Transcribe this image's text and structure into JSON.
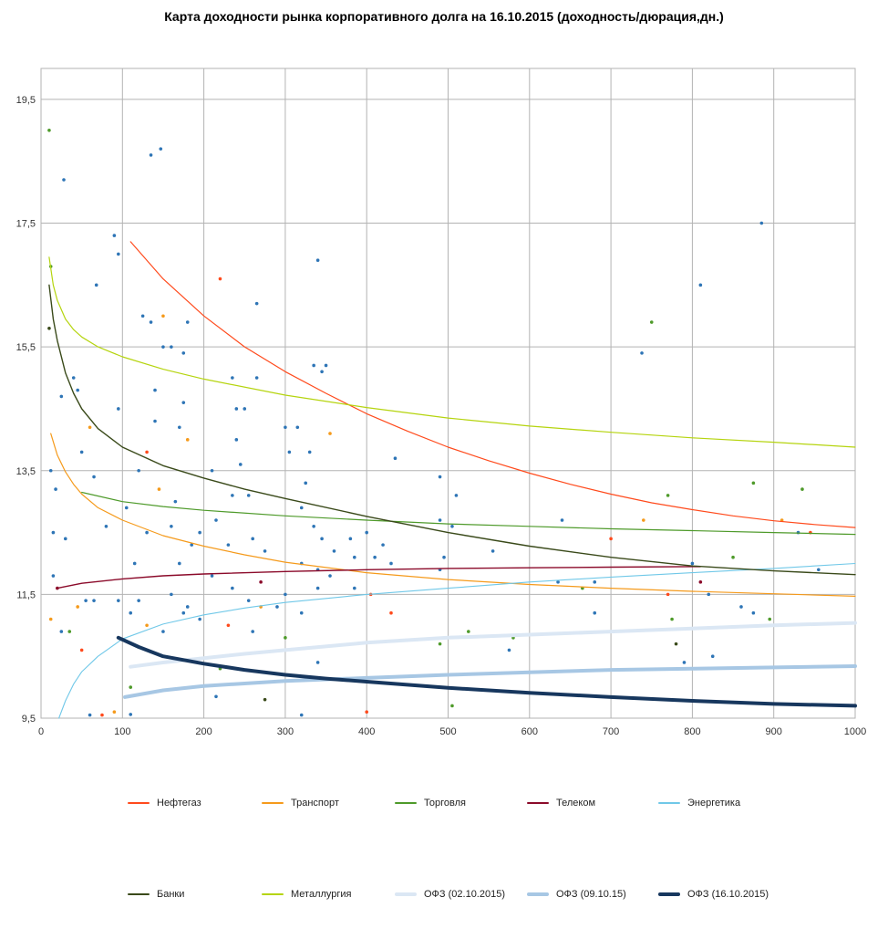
{
  "chart_data": {
    "type": "scatter",
    "title": "Карта доходности рынка корпоративного долга на 16.10.2015 (доходность/дюрация,дн.)",
    "xlabel": "",
    "ylabel": "",
    "xlim": [
      0,
      1000
    ],
    "ylim": [
      9.5,
      20
    ],
    "x_ticks": [
      "0",
      "100",
      "200",
      "300",
      "400",
      "500",
      "600",
      "700",
      "800",
      "900",
      "1000"
    ],
    "y_ticks": [
      "9,5",
      "11,5",
      "13,5",
      "15,5",
      "17,5",
      "19,5"
    ],
    "grid": true,
    "legend_position": "bottom",
    "series": [
      {
        "name": "Нефтегаз",
        "color": "#ff4a1c",
        "width": 1.2,
        "x": [
          110,
          150,
          200,
          250,
          300,
          350,
          400,
          450,
          500,
          550,
          600,
          650,
          700,
          750,
          800,
          850,
          900,
          950,
          1000
        ],
        "y": [
          17.2,
          16.6,
          16.0,
          15.5,
          15.1,
          14.75,
          14.42,
          14.14,
          13.88,
          13.66,
          13.46,
          13.28,
          13.12,
          12.98,
          12.87,
          12.77,
          12.69,
          12.63,
          12.58
        ]
      },
      {
        "name": "Транспорт",
        "color": "#f59a1b",
        "width": 1.2,
        "x": [
          12,
          20,
          30,
          40,
          50,
          70,
          100,
          150,
          200,
          250,
          300,
          400,
          500,
          600,
          700,
          800,
          900,
          1000
        ],
        "y": [
          14.1,
          13.75,
          13.48,
          13.28,
          13.12,
          12.9,
          12.7,
          12.45,
          12.28,
          12.14,
          12.02,
          11.85,
          11.74,
          11.66,
          11.6,
          11.55,
          11.51,
          11.47
        ]
      },
      {
        "name": "Торговля",
        "color": "#4e9a2a",
        "width": 1.2,
        "x": [
          50,
          100,
          150,
          200,
          300,
          400,
          500,
          600,
          700,
          800,
          900,
          1000
        ],
        "y": [
          13.15,
          13.0,
          12.92,
          12.86,
          12.77,
          12.7,
          12.64,
          12.6,
          12.56,
          12.53,
          12.5,
          12.47
        ]
      },
      {
        "name": "Телеком",
        "color": "#8b0a2a",
        "width": 1.4,
        "x": [
          20,
          50,
          100,
          150,
          200,
          300,
          400,
          500,
          600,
          700,
          800,
          810
        ],
        "y": [
          11.6,
          11.68,
          11.75,
          11.8,
          11.83,
          11.87,
          11.9,
          11.92,
          11.93,
          11.94,
          11.95,
          11.95
        ]
      },
      {
        "name": "Энергетика",
        "color": "#70c8e8",
        "width": 1.1,
        "x": [
          22,
          30,
          40,
          50,
          70,
          100,
          150,
          200,
          250,
          300,
          400,
          500,
          600,
          700,
          800,
          900,
          1000
        ],
        "y": [
          9.5,
          9.78,
          10.05,
          10.25,
          10.5,
          10.78,
          11.02,
          11.17,
          11.28,
          11.37,
          11.5,
          11.6,
          11.7,
          11.78,
          11.85,
          11.92,
          12.0
        ]
      },
      {
        "name": "Банки",
        "color": "#3a4a1a",
        "width": 1.4,
        "x": [
          10,
          15,
          20,
          30,
          40,
          50,
          70,
          100,
          150,
          200,
          250,
          300,
          400,
          500,
          600,
          700,
          800,
          900,
          1000
        ],
        "y": [
          16.5,
          15.95,
          15.6,
          15.08,
          14.75,
          14.5,
          14.18,
          13.88,
          13.58,
          13.38,
          13.2,
          13.05,
          12.76,
          12.5,
          12.28,
          12.1,
          11.96,
          11.88,
          11.82
        ]
      },
      {
        "name": "Металлургия",
        "color": "#b5d40e",
        "width": 1.2,
        "x": [
          10,
          15,
          20,
          30,
          40,
          50,
          70,
          100,
          150,
          200,
          300,
          400,
          500,
          600,
          700,
          800,
          900,
          1000
        ],
        "y": [
          16.95,
          16.5,
          16.25,
          15.95,
          15.78,
          15.66,
          15.5,
          15.34,
          15.14,
          14.98,
          14.72,
          14.52,
          14.35,
          14.22,
          14.12,
          14.03,
          13.96,
          13.88
        ]
      },
      {
        "name": "ОФЗ (02.10.2015)",
        "color": "#dbe7f4",
        "width": 4,
        "x": [
          110,
          150,
          200,
          250,
          300,
          400,
          500,
          600,
          700,
          800,
          900,
          1000
        ],
        "y": [
          10.33,
          10.4,
          10.47,
          10.54,
          10.6,
          10.72,
          10.8,
          10.85,
          10.9,
          10.95,
          11.0,
          11.04
        ]
      },
      {
        "name": "ОФЗ (09.10.15)",
        "color": "#a7c7e4",
        "width": 4,
        "x": [
          103,
          150,
          200,
          250,
          300,
          400,
          500,
          600,
          700,
          800,
          900,
          1000
        ],
        "y": [
          9.84,
          9.95,
          10.02,
          10.06,
          10.1,
          10.15,
          10.2,
          10.24,
          10.28,
          10.3,
          10.32,
          10.34
        ]
      },
      {
        "name": "ОФЗ (16.10.2015)",
        "color": "#17375e",
        "width": 4,
        "x": [
          95,
          120,
          150,
          200,
          250,
          300,
          350,
          400,
          500,
          600,
          700,
          800,
          900,
          1000
        ],
        "y": [
          10.8,
          10.65,
          10.5,
          10.38,
          10.28,
          10.2,
          10.14,
          10.09,
          9.99,
          9.91,
          9.84,
          9.78,
          9.73,
          9.7
        ]
      }
    ],
    "scatter_points": [
      {
        "x": 10,
        "y": 19.0,
        "c": "#4e9a2a"
      },
      {
        "x": 12,
        "y": 16.8,
        "c": "#4e9a2a"
      },
      {
        "x": 10,
        "y": 15.8,
        "c": "#3a4a1a"
      },
      {
        "x": 28,
        "y": 18.2,
        "c": "#2e75b6"
      },
      {
        "x": 12,
        "y": 13.5,
        "c": "#2e75b6"
      },
      {
        "x": 15,
        "y": 12.5,
        "c": "#2e75b6"
      },
      {
        "x": 18,
        "y": 13.2,
        "c": "#2e75b6"
      },
      {
        "x": 25,
        "y": 14.7,
        "c": "#2e75b6"
      },
      {
        "x": 40,
        "y": 15.0,
        "c": "#2e75b6"
      },
      {
        "x": 45,
        "y": 14.8,
        "c": "#2e75b6"
      },
      {
        "x": 50,
        "y": 13.8,
        "c": "#2e75b6"
      },
      {
        "x": 60,
        "y": 14.2,
        "c": "#f59a1b"
      },
      {
        "x": 65,
        "y": 13.4,
        "c": "#2e75b6"
      },
      {
        "x": 68,
        "y": 16.5,
        "c": "#2e75b6"
      },
      {
        "x": 90,
        "y": 17.3,
        "c": "#2e75b6"
      },
      {
        "x": 95,
        "y": 17.0,
        "c": "#2e75b6"
      },
      {
        "x": 95,
        "y": 14.5,
        "c": "#2e75b6"
      },
      {
        "x": 12,
        "y": 11.1,
        "c": "#f59a1b"
      },
      {
        "x": 15,
        "y": 11.8,
        "c": "#2e75b6"
      },
      {
        "x": 25,
        "y": 10.9,
        "c": "#2e75b6"
      },
      {
        "x": 35,
        "y": 10.9,
        "c": "#4e9a2a"
      },
      {
        "x": 45,
        "y": 11.3,
        "c": "#f59a1b"
      },
      {
        "x": 50,
        "y": 10.6,
        "c": "#ff4a1c"
      },
      {
        "x": 55,
        "y": 11.4,
        "c": "#2e75b6"
      },
      {
        "x": 65,
        "y": 11.4,
        "c": "#2e75b6"
      },
      {
        "x": 60,
        "y": 9.55,
        "c": "#2e75b6"
      },
      {
        "x": 75,
        "y": 9.55,
        "c": "#ff4a1c"
      },
      {
        "x": 90,
        "y": 9.6,
        "c": "#f59a1b"
      },
      {
        "x": 110,
        "y": 9.56,
        "c": "#2e75b6"
      },
      {
        "x": 95,
        "y": 11.4,
        "c": "#2e75b6"
      },
      {
        "x": 110,
        "y": 11.2,
        "c": "#2e75b6"
      },
      {
        "x": 115,
        "y": 12.0,
        "c": "#2e75b6"
      },
      {
        "x": 120,
        "y": 13.5,
        "c": "#2e75b6"
      },
      {
        "x": 130,
        "y": 12.5,
        "c": "#2e75b6"
      },
      {
        "x": 135,
        "y": 18.6,
        "c": "#2e75b6"
      },
      {
        "x": 147,
        "y": 18.7,
        "c": "#2e75b6"
      },
      {
        "x": 125,
        "y": 16.0,
        "c": "#2e75b6"
      },
      {
        "x": 135,
        "y": 15.9,
        "c": "#2e75b6"
      },
      {
        "x": 150,
        "y": 16.0,
        "c": "#f59a1b"
      },
      {
        "x": 150,
        "y": 15.5,
        "c": "#2e75b6"
      },
      {
        "x": 160,
        "y": 15.5,
        "c": "#2e75b6"
      },
      {
        "x": 175,
        "y": 15.4,
        "c": "#2e75b6"
      },
      {
        "x": 180,
        "y": 15.9,
        "c": "#2e75b6"
      },
      {
        "x": 140,
        "y": 14.8,
        "c": "#2e75b6"
      },
      {
        "x": 140,
        "y": 14.3,
        "c": "#2e75b6"
      },
      {
        "x": 130,
        "y": 13.8,
        "c": "#ff4a1c"
      },
      {
        "x": 145,
        "y": 13.2,
        "c": "#f59a1b"
      },
      {
        "x": 165,
        "y": 13.0,
        "c": "#2e75b6"
      },
      {
        "x": 170,
        "y": 14.2,
        "c": "#2e75b6"
      },
      {
        "x": 175,
        "y": 14.6,
        "c": "#2e75b6"
      },
      {
        "x": 180,
        "y": 14.0,
        "c": "#f59a1b"
      },
      {
        "x": 160,
        "y": 12.6,
        "c": "#2e75b6"
      },
      {
        "x": 170,
        "y": 12.0,
        "c": "#2e75b6"
      },
      {
        "x": 185,
        "y": 12.3,
        "c": "#2e75b6"
      },
      {
        "x": 195,
        "y": 12.5,
        "c": "#2e75b6"
      },
      {
        "x": 160,
        "y": 11.5,
        "c": "#2e75b6"
      },
      {
        "x": 180,
        "y": 11.3,
        "c": "#2e75b6"
      },
      {
        "x": 195,
        "y": 11.1,
        "c": "#2e75b6"
      },
      {
        "x": 130,
        "y": 11.0,
        "c": "#f59a1b"
      },
      {
        "x": 150,
        "y": 10.9,
        "c": "#2e75b6"
      },
      {
        "x": 175,
        "y": 11.2,
        "c": "#2e75b6"
      },
      {
        "x": 110,
        "y": 10.0,
        "c": "#4e9a2a"
      },
      {
        "x": 220,
        "y": 16.6,
        "c": "#ff4a1c"
      },
      {
        "x": 235,
        "y": 15.0,
        "c": "#2e75b6"
      },
      {
        "x": 240,
        "y": 14.5,
        "c": "#2e75b6"
      },
      {
        "x": 250,
        "y": 14.5,
        "c": "#2e75b6"
      },
      {
        "x": 265,
        "y": 16.2,
        "c": "#2e75b6"
      },
      {
        "x": 265,
        "y": 15.0,
        "c": "#2e75b6"
      },
      {
        "x": 240,
        "y": 14.0,
        "c": "#2e75b6"
      },
      {
        "x": 245,
        "y": 13.6,
        "c": "#2e75b6"
      },
      {
        "x": 210,
        "y": 13.5,
        "c": "#2e75b6"
      },
      {
        "x": 235,
        "y": 13.1,
        "c": "#2e75b6"
      },
      {
        "x": 255,
        "y": 13.1,
        "c": "#2e75b6"
      },
      {
        "x": 215,
        "y": 12.7,
        "c": "#2e75b6"
      },
      {
        "x": 230,
        "y": 12.3,
        "c": "#2e75b6"
      },
      {
        "x": 260,
        "y": 12.4,
        "c": "#2e75b6"
      },
      {
        "x": 275,
        "y": 12.2,
        "c": "#2e75b6"
      },
      {
        "x": 210,
        "y": 11.8,
        "c": "#2e75b6"
      },
      {
        "x": 235,
        "y": 11.6,
        "c": "#2e75b6"
      },
      {
        "x": 255,
        "y": 11.4,
        "c": "#2e75b6"
      },
      {
        "x": 270,
        "y": 11.3,
        "c": "#f59a1b"
      },
      {
        "x": 230,
        "y": 11.0,
        "c": "#ff4a1c"
      },
      {
        "x": 220,
        "y": 10.3,
        "c": "#4e9a2a"
      },
      {
        "x": 215,
        "y": 9.85,
        "c": "#2e75b6"
      },
      {
        "x": 275,
        "y": 9.8,
        "c": "#3a4a1a"
      },
      {
        "x": 300,
        "y": 14.2,
        "c": "#2e75b6"
      },
      {
        "x": 315,
        "y": 14.2,
        "c": "#2e75b6"
      },
      {
        "x": 305,
        "y": 13.8,
        "c": "#2e75b6"
      },
      {
        "x": 325,
        "y": 13.3,
        "c": "#2e75b6"
      },
      {
        "x": 330,
        "y": 13.8,
        "c": "#2e75b6"
      },
      {
        "x": 340,
        "y": 16.9,
        "c": "#2e75b6"
      },
      {
        "x": 335,
        "y": 15.2,
        "c": "#2e75b6"
      },
      {
        "x": 345,
        "y": 15.1,
        "c": "#2e75b6"
      },
      {
        "x": 350,
        "y": 15.2,
        "c": "#2e75b6"
      },
      {
        "x": 355,
        "y": 14.1,
        "c": "#f59a1b"
      },
      {
        "x": 320,
        "y": 12.9,
        "c": "#2e75b6"
      },
      {
        "x": 335,
        "y": 12.6,
        "c": "#2e75b6"
      },
      {
        "x": 345,
        "y": 12.4,
        "c": "#2e75b6"
      },
      {
        "x": 360,
        "y": 12.2,
        "c": "#2e75b6"
      },
      {
        "x": 320,
        "y": 12.0,
        "c": "#2e75b6"
      },
      {
        "x": 340,
        "y": 11.9,
        "c": "#2e75b6"
      },
      {
        "x": 355,
        "y": 11.8,
        "c": "#2e75b6"
      },
      {
        "x": 300,
        "y": 11.5,
        "c": "#2e75b6"
      },
      {
        "x": 320,
        "y": 11.2,
        "c": "#2e75b6"
      },
      {
        "x": 340,
        "y": 11.6,
        "c": "#2e75b6"
      },
      {
        "x": 300,
        "y": 10.8,
        "c": "#4e9a2a"
      },
      {
        "x": 340,
        "y": 10.4,
        "c": "#2e75b6"
      },
      {
        "x": 320,
        "y": 9.55,
        "c": "#2e75b6"
      },
      {
        "x": 380,
        "y": 12.4,
        "c": "#2e75b6"
      },
      {
        "x": 385,
        "y": 12.1,
        "c": "#2e75b6"
      },
      {
        "x": 400,
        "y": 12.5,
        "c": "#2e75b6"
      },
      {
        "x": 410,
        "y": 12.1,
        "c": "#2e75b6"
      },
      {
        "x": 420,
        "y": 12.3,
        "c": "#2e75b6"
      },
      {
        "x": 430,
        "y": 12.0,
        "c": "#2e75b6"
      },
      {
        "x": 385,
        "y": 11.6,
        "c": "#2e75b6"
      },
      {
        "x": 405,
        "y": 11.5,
        "c": "#ff4a1c"
      },
      {
        "x": 435,
        "y": 13.7,
        "c": "#2e75b6"
      },
      {
        "x": 430,
        "y": 11.2,
        "c": "#ff4a1c"
      },
      {
        "x": 400,
        "y": 9.6,
        "c": "#ff4a1c"
      },
      {
        "x": 490,
        "y": 13.4,
        "c": "#2e75b6"
      },
      {
        "x": 510,
        "y": 13.1,
        "c": "#2e75b6"
      },
      {
        "x": 505,
        "y": 12.6,
        "c": "#2e75b6"
      },
      {
        "x": 490,
        "y": 12.7,
        "c": "#2e75b6"
      },
      {
        "x": 495,
        "y": 12.1,
        "c": "#2e75b6"
      },
      {
        "x": 490,
        "y": 11.9,
        "c": "#2e75b6"
      },
      {
        "x": 490,
        "y": 10.7,
        "c": "#4e9a2a"
      },
      {
        "x": 505,
        "y": 9.7,
        "c": "#4e9a2a"
      },
      {
        "x": 525,
        "y": 10.9,
        "c": "#4e9a2a"
      },
      {
        "x": 555,
        "y": 12.2,
        "c": "#2e75b6"
      },
      {
        "x": 575,
        "y": 10.6,
        "c": "#2e75b6"
      },
      {
        "x": 580,
        "y": 10.8,
        "c": "#4e9a2a"
      },
      {
        "x": 640,
        "y": 12.7,
        "c": "#2e75b6"
      },
      {
        "x": 635,
        "y": 11.7,
        "c": "#2e75b6"
      },
      {
        "x": 665,
        "y": 11.6,
        "c": "#4e9a2a"
      },
      {
        "x": 680,
        "y": 11.7,
        "c": "#2e75b6"
      },
      {
        "x": 680,
        "y": 11.2,
        "c": "#2e75b6"
      },
      {
        "x": 700,
        "y": 12.4,
        "c": "#ff4a1c"
      },
      {
        "x": 740,
        "y": 12.7,
        "c": "#f59a1b"
      },
      {
        "x": 738,
        "y": 15.4,
        "c": "#2e75b6"
      },
      {
        "x": 750,
        "y": 15.9,
        "c": "#4e9a2a"
      },
      {
        "x": 770,
        "y": 13.1,
        "c": "#4e9a2a"
      },
      {
        "x": 770,
        "y": 11.5,
        "c": "#ff4a1c"
      },
      {
        "x": 775,
        "y": 11.1,
        "c": "#4e9a2a"
      },
      {
        "x": 780,
        "y": 10.7,
        "c": "#3a4a1a"
      },
      {
        "x": 790,
        "y": 10.4,
        "c": "#2e75b6"
      },
      {
        "x": 800,
        "y": 12.0,
        "c": "#2e75b6"
      },
      {
        "x": 810,
        "y": 16.5,
        "c": "#2e75b6"
      },
      {
        "x": 810,
        "y": 11.7,
        "c": "#8b0a2a"
      },
      {
        "x": 820,
        "y": 11.5,
        "c": "#2e75b6"
      },
      {
        "x": 825,
        "y": 10.5,
        "c": "#2e75b6"
      },
      {
        "x": 850,
        "y": 12.1,
        "c": "#4e9a2a"
      },
      {
        "x": 860,
        "y": 11.3,
        "c": "#2e75b6"
      },
      {
        "x": 875,
        "y": 13.3,
        "c": "#4e9a2a"
      },
      {
        "x": 885,
        "y": 17.5,
        "c": "#2e75b6"
      },
      {
        "x": 895,
        "y": 11.1,
        "c": "#4e9a2a"
      },
      {
        "x": 910,
        "y": 12.7,
        "c": "#f59a1b"
      },
      {
        "x": 930,
        "y": 12.5,
        "c": "#2e75b6"
      },
      {
        "x": 935,
        "y": 13.2,
        "c": "#4e9a2a"
      },
      {
        "x": 945,
        "y": 12.5,
        "c": "#ff4a1c"
      },
      {
        "x": 955,
        "y": 11.9,
        "c": "#2e75b6"
      },
      {
        "x": 875,
        "y": 11.2,
        "c": "#2e75b6"
      },
      {
        "x": 260,
        "y": 10.9,
        "c": "#2e75b6"
      },
      {
        "x": 270,
        "y": 11.7,
        "c": "#8b0a2a"
      },
      {
        "x": 290,
        "y": 11.3,
        "c": "#2e75b6"
      },
      {
        "x": 120,
        "y": 11.4,
        "c": "#2e75b6"
      },
      {
        "x": 105,
        "y": 12.9,
        "c": "#2e75b6"
      },
      {
        "x": 80,
        "y": 12.6,
        "c": "#2e75b6"
      },
      {
        "x": 30,
        "y": 12.4,
        "c": "#2e75b6"
      },
      {
        "x": 20,
        "y": 11.6,
        "c": "#8b0a2a"
      }
    ]
  }
}
